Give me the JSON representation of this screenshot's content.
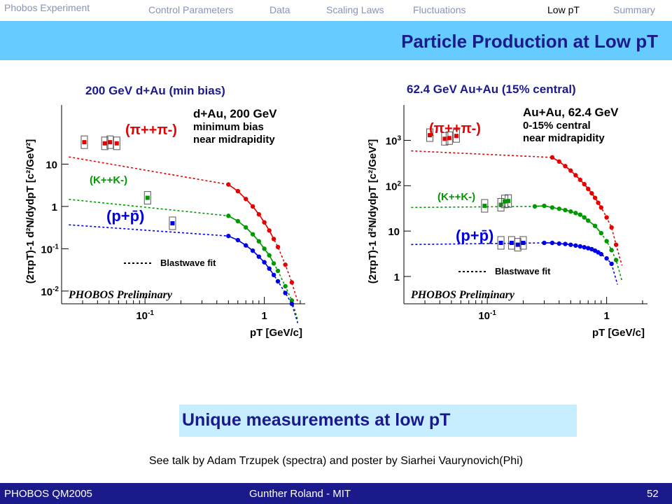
{
  "nav": {
    "brand": "Phobos Experiment",
    "items": [
      "Control Parameters",
      "Data",
      "Scaling Laws",
      "Fluctuations",
      "Low pT",
      "Summary"
    ],
    "active": "Low pT"
  },
  "slide_title": "Particle Production at Low pT",
  "callout": "Unique measurements at low pT",
  "note": "See talk by Adam Trzupek (spectra) and poster by Siarhei Vaurynovich(Phi)",
  "footer": {
    "left": "PHOBOS QM2005",
    "center": "Gunther Roland - MIT",
    "right": "52"
  },
  "colors": {
    "pion": "#e60000",
    "kaon": "#009900",
    "proton": "#0000e6",
    "title": "#1a1a8c",
    "band": "#66ccff",
    "callout": "#c6eefe"
  },
  "chart_data": [
    {
      "type": "scatter",
      "title": "200 GeV d+Au (min bias)",
      "ylabel": "(2πpT)-1 d²N/dydpT [c²/GeV²]",
      "xlabel": "pT [GeV/c]",
      "log_x": true,
      "log_y": true,
      "xlim": [
        0.02,
        2.2
      ],
      "ylim": [
        0.005,
        250
      ],
      "x_ticks": [
        "10-1",
        "1"
      ],
      "y_ticks": [
        "10",
        "1",
        "10-1",
        "10-2"
      ],
      "legend": [
        "d+Au, 200 GeV",
        "minimum bias",
        "near midrapidity"
      ],
      "fit_label": "Blastwave fit",
      "watermark": "PHOBOS Preliminary",
      "series": [
        {
          "name": "(π++π-)",
          "low_x": [
            0.031,
            0.046,
            0.051,
            0.058
          ],
          "low_y": [
            33,
            31,
            33,
            31
          ],
          "x": [
            0.5,
            0.6,
            0.7,
            0.8,
            0.9,
            1.0,
            1.1,
            1.2,
            1.3,
            1.5,
            1.7
          ],
          "y": [
            3.3,
            2.3,
            1.5,
            1.0,
            0.65,
            0.42,
            0.27,
            0.17,
            0.11,
            0.042,
            0.016
          ]
        },
        {
          "name": "(K++K-)",
          "low_x": [
            0.105
          ],
          "low_y": [
            1.6
          ],
          "x": [
            0.5,
            0.6,
            0.7,
            0.8,
            0.9,
            1.0,
            1.1,
            1.2,
            1.3,
            1.5,
            1.7
          ],
          "y": [
            0.6,
            0.45,
            0.32,
            0.22,
            0.15,
            0.1,
            0.07,
            0.045,
            0.03,
            0.013,
            0.006
          ]
        },
        {
          "name": "(p+p̄)",
          "low_x": [
            0.17
          ],
          "low_y": [
            0.4
          ],
          "x": [
            0.5,
            0.6,
            0.7,
            0.8,
            0.9,
            1.0,
            1.1,
            1.2,
            1.3,
            1.5,
            1.7
          ],
          "y": [
            0.2,
            0.16,
            0.12,
            0.09,
            0.065,
            0.048,
            0.034,
            0.024,
            0.017,
            0.009,
            0.005
          ]
        }
      ]
    },
    {
      "type": "scatter",
      "title": "62.4 GeV Au+Au (15% central)",
      "ylabel": "(2πpT)-1 d²N/dydpT [c²/GeV²]",
      "xlabel": "pT [GeV/c]",
      "log_x": true,
      "log_y": true,
      "xlim": [
        0.02,
        2.2
      ],
      "ylim": [
        0.25,
        6000
      ],
      "x_ticks": [
        "10-1",
        "1"
      ],
      "y_ticks": [
        "103",
        "102",
        "10",
        "1"
      ],
      "legend": [
        "Au+Au, 62.4 GeV",
        "0-15% central",
        "near midrapidity"
      ],
      "fit_label": "Blastwave fit",
      "watermark": "PHOBOS Preliminary",
      "series": [
        {
          "name": "(π++π-)",
          "low_x": [
            0.033,
            0.044,
            0.048,
            0.055
          ],
          "low_y": [
            1300,
            1080,
            1120,
            1250
          ],
          "x": [
            0.35,
            0.4,
            0.45,
            0.5,
            0.55,
            0.6,
            0.65,
            0.7,
            0.75,
            0.8,
            0.85,
            0.9,
            1.0,
            1.1,
            1.2
          ],
          "y": [
            420,
            340,
            270,
            215,
            170,
            135,
            108,
            85,
            68,
            54,
            42,
            33,
            20,
            12,
            5
          ]
        },
        {
          "name": "(K++K-)",
          "low_x": [
            0.095,
            0.13,
            0.14,
            0.15
          ],
          "low_y": [
            36,
            38,
            45,
            46
          ],
          "x": [
            0.25,
            0.3,
            0.35,
            0.4,
            0.45,
            0.5,
            0.55,
            0.6,
            0.65,
            0.7,
            0.8,
            0.9,
            1.0,
            1.1,
            1.2
          ],
          "y": [
            35,
            36,
            33,
            31,
            29,
            27,
            25,
            23,
            20,
            17,
            13,
            9,
            6,
            3.8,
            2.3
          ]
        },
        {
          "name": "(p+p̄)",
          "low_x": [
            0.13,
            0.16,
            0.18,
            0.2
          ],
          "low_y": [
            5.5,
            5.5,
            5.0,
            5.5
          ],
          "x": [
            0.3,
            0.35,
            0.4,
            0.45,
            0.5,
            0.55,
            0.6,
            0.65,
            0.7,
            0.75,
            0.8,
            0.85,
            0.9,
            1.0,
            1.1
          ],
          "y": [
            5.5,
            5.5,
            5.3,
            5.2,
            5.0,
            4.8,
            4.6,
            4.4,
            4.2,
            4.0,
            3.7,
            3.4,
            3.1,
            2.5,
            1.9
          ]
        }
      ]
    }
  ]
}
